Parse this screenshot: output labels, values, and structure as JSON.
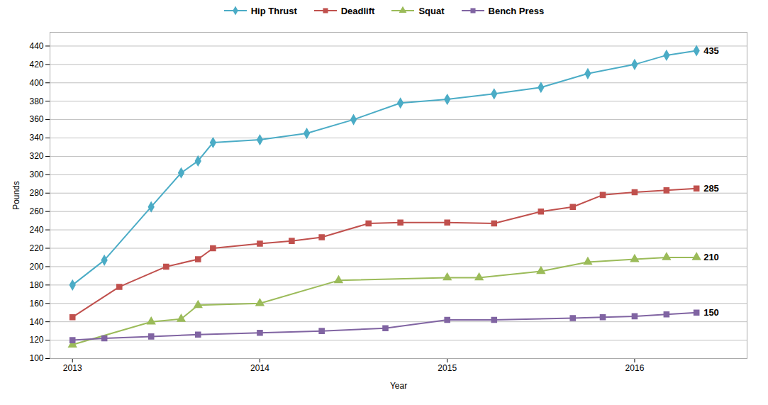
{
  "chart_data": {
    "type": "line",
    "xlabel": "Year",
    "ylabel": "Pounds",
    "series": [
      {
        "name": "Hip Thrust",
        "color": "#4bacc6",
        "marker": "diamond",
        "x": [
          2013.0,
          2013.17,
          2013.42,
          2013.58,
          2013.67,
          2013.75,
          2014.0,
          2014.25,
          2014.5,
          2014.75,
          2015.0,
          2015.25,
          2015.5,
          2015.75,
          2016.0,
          2016.17,
          2016.33
        ],
        "values": [
          180,
          207,
          265,
          302,
          315,
          335,
          338,
          345,
          360,
          378,
          382,
          388,
          395,
          410,
          420,
          430,
          435
        ]
      },
      {
        "name": "Deadlift",
        "color": "#c0504d",
        "marker": "square",
        "x": [
          2013.0,
          2013.25,
          2013.5,
          2013.67,
          2013.75,
          2014.0,
          2014.17,
          2014.33,
          2014.58,
          2014.75,
          2015.0,
          2015.25,
          2015.5,
          2015.67,
          2015.83,
          2016.0,
          2016.17,
          2016.33
        ],
        "values": [
          145,
          178,
          200,
          208,
          220,
          225,
          228,
          232,
          247,
          248,
          248,
          247,
          260,
          265,
          278,
          281,
          283,
          285
        ]
      },
      {
        "name": "Squat",
        "color": "#9bbb59",
        "marker": "triangle",
        "x": [
          2013.0,
          2013.42,
          2013.58,
          2013.67,
          2014.0,
          2014.42,
          2015.0,
          2015.17,
          2015.5,
          2015.75,
          2016.0,
          2016.17,
          2016.33
        ],
        "values": [
          115,
          140,
          143,
          158,
          160,
          185,
          188,
          188,
          195,
          205,
          208,
          210,
          210
        ]
      },
      {
        "name": "Bench Press",
        "color": "#8064a2",
        "marker": "square",
        "x": [
          2013.0,
          2013.17,
          2013.42,
          2013.67,
          2014.0,
          2014.33,
          2014.67,
          2015.0,
          2015.25,
          2015.67,
          2015.83,
          2016.0,
          2016.17,
          2016.33
        ],
        "values": [
          120,
          122,
          124,
          126,
          128,
          130,
          133,
          142,
          142,
          144,
          145,
          146,
          148,
          150
        ]
      }
    ],
    "annotations": [
      {
        "text": "435",
        "x": 2016.33,
        "y": 435
      },
      {
        "text": "285",
        "x": 2016.33,
        "y": 285
      },
      {
        "text": "210",
        "x": 2016.33,
        "y": 210
      },
      {
        "text": "150",
        "x": 2016.33,
        "y": 150
      }
    ],
    "xlim": [
      2012.88,
      2016.6
    ],
    "ylim": [
      100,
      455
    ],
    "xticks": [
      2013,
      2014,
      2015,
      2016
    ],
    "yticks": [
      100,
      120,
      140,
      160,
      180,
      200,
      220,
      240,
      260,
      280,
      300,
      320,
      340,
      360,
      380,
      400,
      420,
      440
    ],
    "grid": "y",
    "legend": "top"
  }
}
